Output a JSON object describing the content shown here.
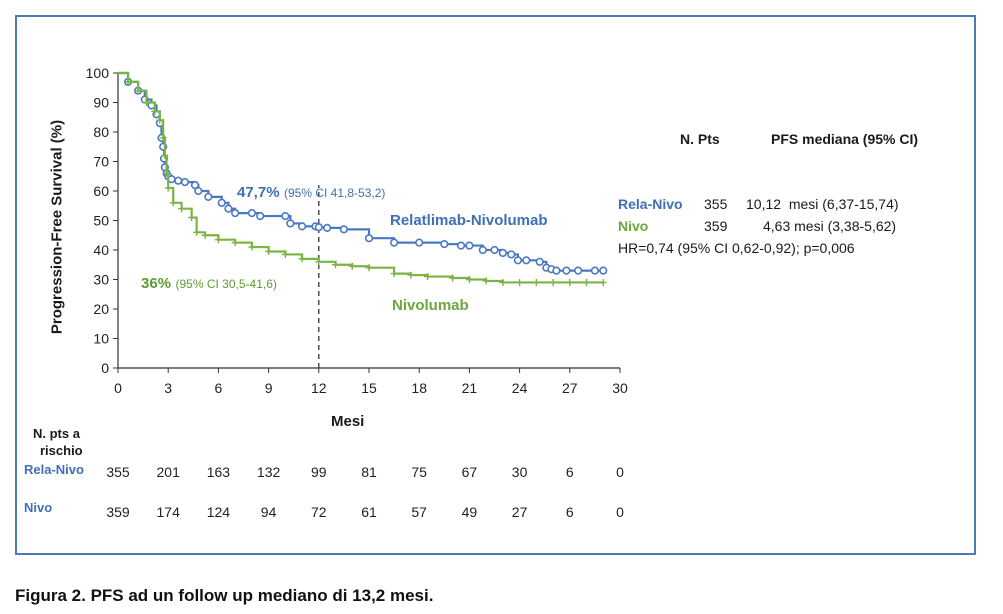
{
  "chart_data": {
    "type": "line",
    "subtype": "kaplan-meier",
    "xlabel": "Mesi",
    "ylabel": "Progression-Free Survival (%)",
    "xlim": [
      0,
      30
    ],
    "ylim": [
      0,
      100
    ],
    "xticks": [
      0,
      3,
      6,
      9,
      12,
      15,
      18,
      21,
      24,
      27,
      30
    ],
    "yticks": [
      0,
      10,
      20,
      30,
      40,
      50,
      60,
      70,
      80,
      90,
      100
    ],
    "reference_line_x": 12,
    "series": [
      {
        "name": "Relatlimab-Nivolumab",
        "color": "#4a78c2",
        "x": [
          0,
          0.6,
          1.2,
          1.6,
          2.0,
          2.3,
          2.5,
          2.6,
          2.7,
          2.75,
          2.8,
          2.9,
          3.0,
          3.2,
          3.6,
          4.0,
          4.6,
          4.8,
          5.4,
          6.2,
          6.6,
          7.0,
          8.0,
          8.5,
          10.0,
          10.3,
          11.0,
          11.8,
          12.0,
          12.5,
          13.5,
          15.0,
          16.5,
          18.0,
          19.5,
          20.5,
          21.0,
          21.8,
          22.5,
          23.0,
          23.5,
          23.9,
          24.4,
          25.2,
          25.6,
          25.9,
          26.2,
          26.8,
          27.5,
          28.5,
          29.0
        ],
        "values": [
          100,
          97,
          94,
          91,
          89,
          86,
          83,
          78,
          75,
          71,
          68,
          66,
          65,
          64,
          63.5,
          63,
          62,
          60,
          58,
          56,
          54,
          52.5,
          52.5,
          51.5,
          51.5,
          49,
          48,
          48,
          47.7,
          47.5,
          47,
          44,
          42.5,
          42.5,
          42,
          41.5,
          41.5,
          40,
          40,
          39,
          38.5,
          36.5,
          36.5,
          36,
          34,
          33.5,
          33,
          33,
          33,
          33,
          33
        ]
      },
      {
        "name": "Nivolumab",
        "color": "#7cb342",
        "x": [
          0,
          0.6,
          1.2,
          1.7,
          2.2,
          2.5,
          2.7,
          2.8,
          2.9,
          3.0,
          3.3,
          3.8,
          4.4,
          4.7,
          5.2,
          6.0,
          7.0,
          8.0,
          9.0,
          10.0,
          11.0,
          12.0,
          13.0,
          14.0,
          15.0,
          16.5,
          17.5,
          18.5,
          20.0,
          21.0,
          22.0,
          23.0,
          24.0,
          25.0,
          26.0,
          27.0,
          28.0,
          29.0
        ],
        "values": [
          100,
          97,
          94,
          90,
          87,
          84,
          78,
          72,
          66,
          61,
          56,
          54,
          51,
          46,
          45,
          43.5,
          42.5,
          41,
          39.5,
          38.5,
          37,
          36,
          35,
          34.5,
          34,
          32,
          31.5,
          31,
          30.5,
          30,
          29.5,
          29,
          29,
          29,
          29,
          29,
          29,
          29
        ]
      }
    ],
    "annotations": {
      "rela_pct": "47,7%",
      "rela_ci": "(95% CI 41,8-53,2)",
      "nivo_pct": "36%",
      "nivo_ci": "(95% CI 30,5-41,6)",
      "rela_curve_label": "Relatlimab-Nivolumab",
      "nivo_curve_label": "Nivolumab"
    }
  },
  "summary_table": {
    "col_pts": "N. Pts",
    "col_pfs": "PFS mediana (95% CI)",
    "rela": {
      "name": "Rela-Nivo",
      "pts": "355",
      "pfs": "10,12  mesi (6,37-15,74)"
    },
    "nivo": {
      "name": "Nivo",
      "pts": "359",
      "pfs": "4,63 mesi (3,38-5,62)"
    },
    "hr": "HR=0,74 (95% CI 0,62-0,92); p=0,006"
  },
  "risk_table": {
    "title_line1": "N. pts a",
    "title_line2": "rischio",
    "rela_label": "Rela-Nivo",
    "nivo_label": "Nivo",
    "rela_values": [
      "355",
      "201",
      "163",
      "132",
      "99",
      "81",
      "75",
      "67",
      "30",
      "6",
      "0"
    ],
    "nivo_values": [
      "359",
      "174",
      "124",
      "94",
      "72",
      "61",
      "57",
      "49",
      "27",
      "6",
      "0"
    ]
  },
  "caption": "Figura 2. PFS ad un follow up mediano di 13,2 mesi."
}
